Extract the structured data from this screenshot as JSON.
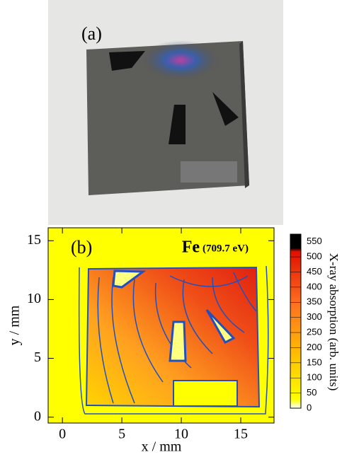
{
  "panel_a": {
    "label": "(a)"
  },
  "chart_data": {
    "type": "contour",
    "panel_label": "(b)",
    "element": "Fe",
    "energy": "(709.7 eV)",
    "x_label": "x / mm",
    "y_label": "y / mm",
    "xlim": [
      -1.2,
      17.8
    ],
    "xticks": [
      0,
      5,
      10,
      15
    ],
    "ylim": [
      -0.5,
      16.1
    ],
    "yticks": [
      0,
      5,
      10,
      15
    ],
    "colorbar": {
      "label": "X-ray absorption (arb. units)",
      "lim": [
        0,
        575
      ],
      "ticks": [
        0,
        50,
        100,
        150,
        200,
        250,
        300,
        350,
        400,
        450,
        500,
        550
      ]
    }
  }
}
